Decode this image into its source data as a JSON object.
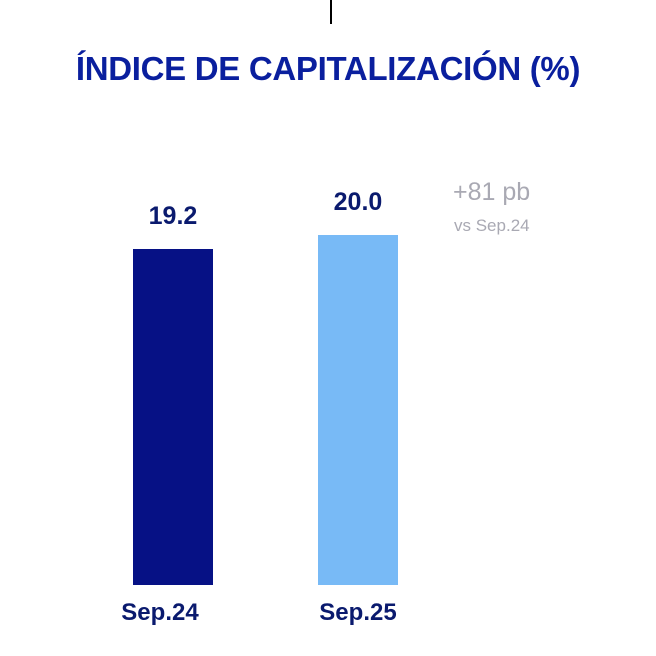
{
  "title": "ÍNDICE DE CAPITALIZACIÓN (%)",
  "annotation": {
    "change": "+81 pb",
    "reference": "vs Sep.24"
  },
  "colors": {
    "title": "#0a1f9e",
    "labels": "#0a1a6e",
    "annotation": "#a9a9b3"
  },
  "chart_data": {
    "type": "bar",
    "title": "ÍNDICE DE CAPITALIZACIÓN (%)",
    "categories": [
      "Sep.24",
      "Sep.25"
    ],
    "values": [
      19.2,
      20.0
    ],
    "value_labels": [
      "19.2",
      "20.0"
    ],
    "bar_colors": [
      "#061185",
      "#78baf6"
    ],
    "xlabel": "",
    "ylabel": "",
    "grid": false,
    "legend": "none"
  }
}
